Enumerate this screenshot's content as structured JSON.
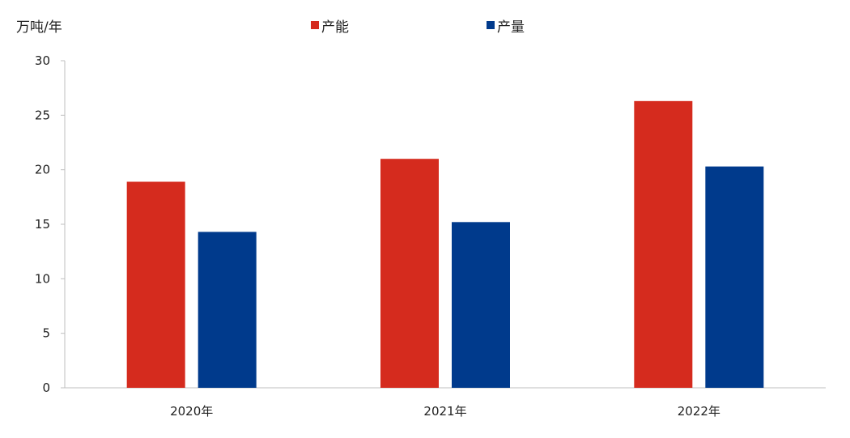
{
  "chart_data": {
    "type": "bar",
    "unit_label": "万吨/年",
    "categories": [
      "2020年",
      "2021年",
      "2022年"
    ],
    "series": [
      {
        "name": "产能",
        "color": "#d52b1e",
        "values": [
          18.9,
          21.0,
          26.3
        ]
      },
      {
        "name": "产量",
        "color": "#003a8c",
        "values": [
          14.3,
          15.2,
          20.3
        ]
      }
    ],
    "ylim": [
      0,
      30
    ],
    "yticks": [
      0,
      5,
      10,
      15,
      20,
      25,
      30
    ],
    "legend_position": "top-center",
    "grid": false
  }
}
